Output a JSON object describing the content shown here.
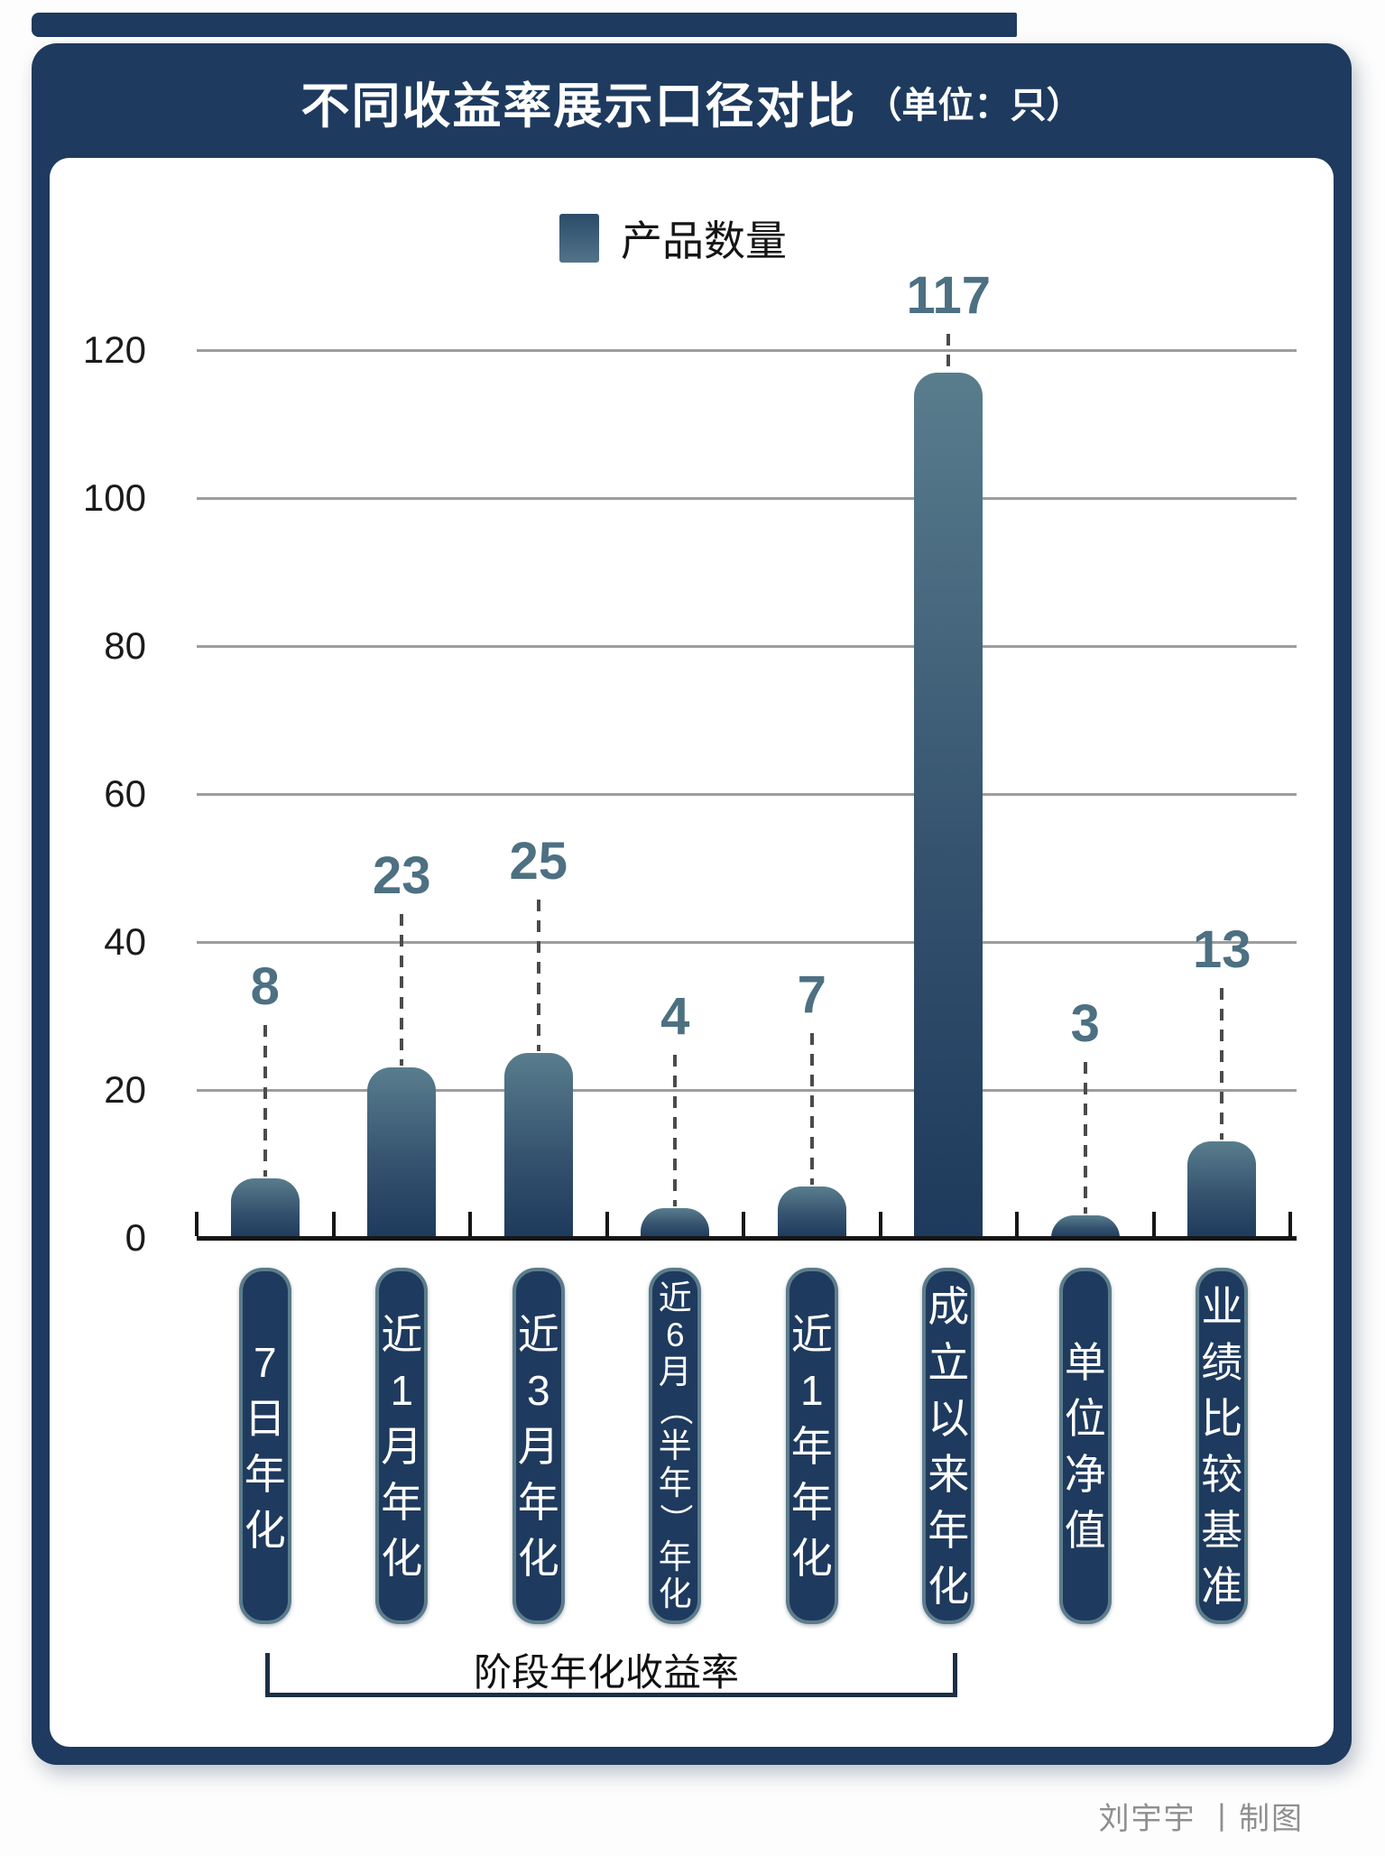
{
  "title": {
    "main": "不同收益率展示口径对比",
    "unit": "（单位：只）"
  },
  "legend": {
    "label": "产品数量"
  },
  "chart_data": {
    "type": "bar",
    "title": "不同收益率展示口径对比（单位：只）",
    "series_name": "产品数量",
    "categories": [
      "7日年化",
      "近1月年化",
      "近3月年化",
      "近6月（半年）年化",
      "近1年年化",
      "成立以来年化",
      "单位净值",
      "业绩比较基准"
    ],
    "values": [
      8,
      23,
      25,
      4,
      7,
      117,
      3,
      13
    ],
    "xlabel": "",
    "ylabel": "",
    "yticks": [
      0,
      20,
      40,
      60,
      80,
      100,
      120
    ],
    "ylim": [
      0,
      130
    ],
    "grid": true,
    "legend_position": "top",
    "group_annotation": {
      "label": "阶段年化收益率",
      "from_category_index": 0,
      "to_category_index": 5
    }
  },
  "bracket": {
    "label": "阶段年化收益率"
  },
  "credit": "刘宇宇 丨制图",
  "colors": {
    "navy": "#1e3a5e",
    "bar_top": "#597d8d",
    "bar_bottom": "#1d3a5c",
    "value_label": "#4d7082",
    "gridline": "#9d9d9d",
    "axis": "#161616",
    "pill_border": "#5c7c8b",
    "credit_gray": "#8f8f8f"
  }
}
